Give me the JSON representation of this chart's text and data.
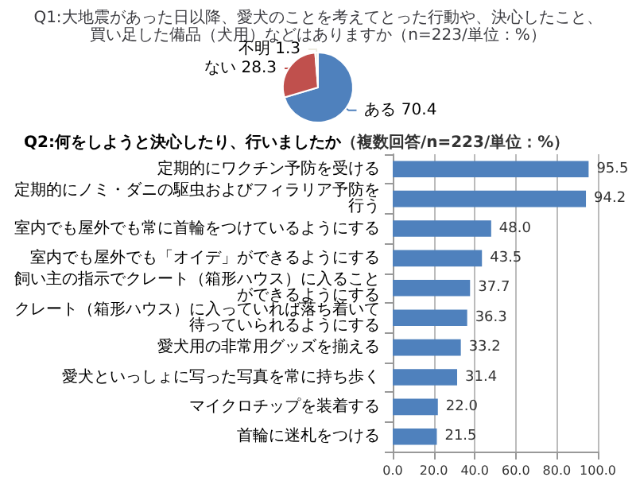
{
  "chart_data": [
    {
      "type": "pie",
      "title": "Q1:大地震があった日以降、愛犬のことを考えてとった行動や、決心したこと、買い足した備品（犬用）などはありますか（n=223/単位：%）",
      "categories": [
        "ある",
        "ない",
        "不明"
      ],
      "values": [
        70.4,
        28.3,
        1.3
      ],
      "colors": [
        "#4f81bd",
        "#c0504d",
        "#eeece1"
      ],
      "data_labels": true,
      "legend": false
    },
    {
      "type": "bar",
      "orientation": "horizontal",
      "title": "Q2:何をしようと決心したり、行いましたか",
      "subtitle": "（複数回答/n=223/単位：%）",
      "categories": [
        "定期的にワクチン予防を受ける",
        "定期的にノミ・ダニの駆虫およびフィラリア予防を行う",
        "室内でも屋外でも常に首輪をつけているようにする",
        "室内でも屋外でも「オイデ」ができるようにする",
        "飼い主の指示でクレート（箱形ハウス）に入ることができるようにする",
        "クレート（箱形ハウス）に入っていれば落ち着いて待っていられるようにする",
        "愛犬用の非常用グッズを揃える",
        "愛犬といっしょに写った写真を常に持ち歩く",
        "マイクロチップを装着する",
        "首輪に迷札をつける"
      ],
      "values": [
        95.5,
        94.2,
        48.0,
        43.5,
        37.7,
        36.3,
        33.2,
        31.4,
        22.0,
        21.5
      ],
      "value_labels": [
        "95.5",
        "94.2",
        "48.0",
        "43.5",
        "37.7",
        "36.3",
        "33.2",
        "31.4",
        "22.0",
        "21.5"
      ],
      "color": "#4f81bd",
      "xlim": [
        0,
        100
      ],
      "xticks": [
        {
          "value": 0,
          "label": "0.0"
        },
        {
          "value": 20,
          "label": "20.0"
        },
        {
          "value": 40,
          "label": "40.0"
        },
        {
          "value": 60,
          "label": "60.0"
        },
        {
          "value": 80,
          "label": "80.0"
        },
        {
          "value": 100,
          "label": "100.0"
        }
      ],
      "grid": "x",
      "legend": false
    }
  ]
}
